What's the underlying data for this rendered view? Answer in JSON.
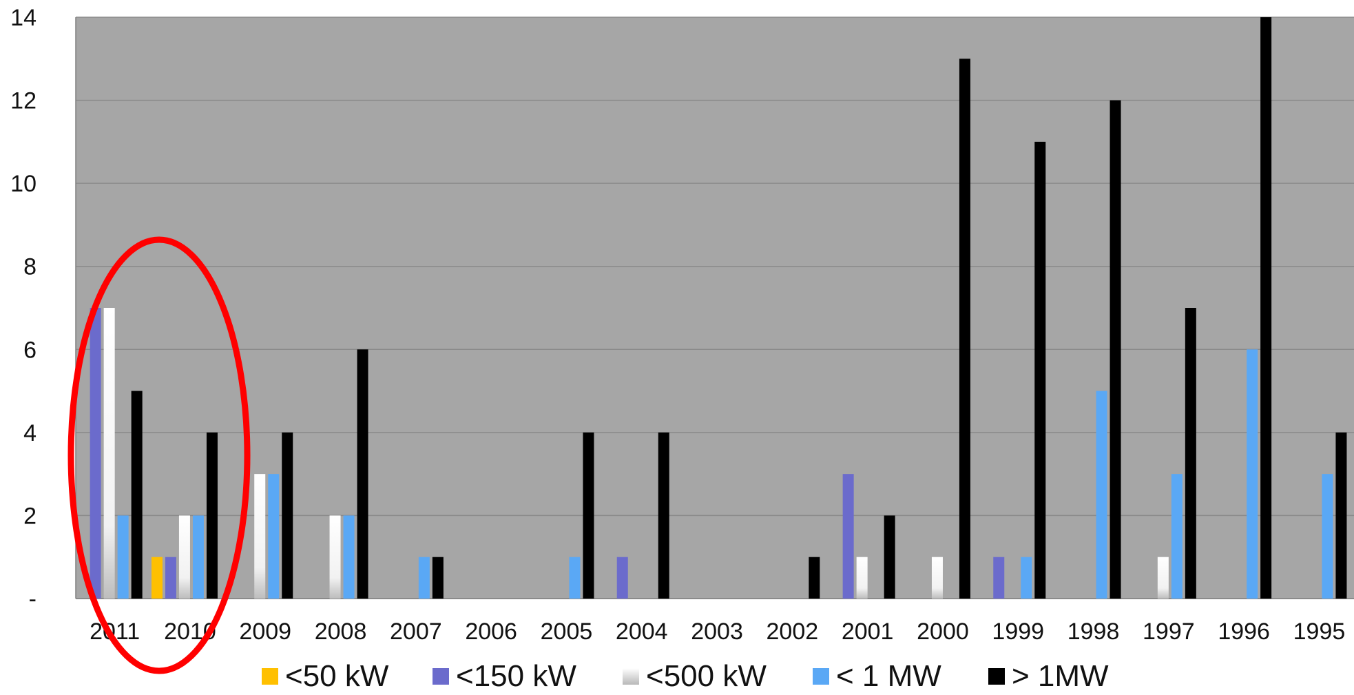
{
  "chart_data": {
    "type": "bar",
    "categories": [
      "2011",
      "2010",
      "2009",
      "2008",
      "2007",
      "2006",
      "2005",
      "2004",
      "2003",
      "2002",
      "2001",
      "2000",
      "1999",
      "1998",
      "1997",
      "1996",
      "1995"
    ],
    "yticks": [
      "-",
      "2",
      "4",
      "6",
      "8",
      "10",
      "12",
      "14"
    ],
    "ylim": [
      0,
      14
    ],
    "grid": true,
    "legend_position": "bottom",
    "plot_background": "#a6a6a6",
    "annotation": "red ellipse highlighting 2011 and 2010",
    "series": [
      {
        "name": "<50 kW",
        "color": "#ffc000",
        "values": [
          0,
          1,
          0,
          0,
          0,
          0,
          0,
          0,
          0,
          0,
          0,
          0,
          0,
          0,
          0,
          0,
          0
        ]
      },
      {
        "name": "<150 kW",
        "color": "#6b6bcc",
        "values": [
          7,
          1,
          0,
          0,
          0,
          0,
          0,
          1,
          0,
          0,
          3,
          0,
          1,
          0,
          0,
          0,
          0
        ]
      },
      {
        "name": "<500 kW",
        "color": "#f2f2f2",
        "values": [
          7,
          2,
          3,
          2,
          0,
          0,
          0,
          0,
          0,
          0,
          1,
          1,
          0,
          0,
          1,
          0,
          0
        ]
      },
      {
        "name": "< 1 MW",
        "color": "#5aa8f5",
        "values": [
          2,
          2,
          3,
          2,
          1,
          0,
          1,
          0,
          0,
          0,
          0,
          0,
          1,
          5,
          3,
          6,
          3
        ]
      },
      {
        "name": "> 1MW",
        "color": "#000000",
        "values": [
          5,
          4,
          4,
          6,
          1,
          0,
          4,
          4,
          0,
          1,
          2,
          13,
          11,
          12,
          7,
          14,
          4
        ]
      }
    ]
  }
}
